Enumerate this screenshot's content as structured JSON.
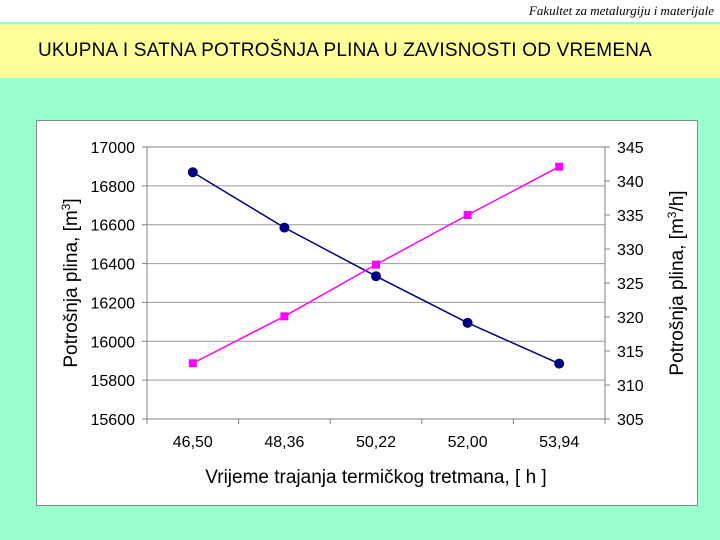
{
  "header": {
    "faculty": "Fakultet za metalurgiju i materijale"
  },
  "slide": {
    "title": "UKUPNA I SATNA POTROŠNJA PLINA U ZAVISNOSTI OD VREMENA"
  },
  "chart_data": {
    "type": "line",
    "title": "",
    "xlabel": "Vrijeme trajanja termičkog tretmana, [ h ]",
    "categories": [
      "46,50",
      "48,36",
      "50,22",
      "52,00",
      "53,94"
    ],
    "y_left": {
      "label_main": "Potrošnja plina, [m",
      "label_sup": "3",
      "label_end": "]",
      "ylim": [
        15600,
        17000
      ],
      "ticks": [
        15600,
        15800,
        16000,
        16200,
        16400,
        16600,
        16800,
        17000
      ]
    },
    "y_right": {
      "label_main": "Potrošnja plina, [m",
      "label_sup": "3",
      "label_end": "/h]",
      "ylim": [
        305,
        345
      ],
      "ticks": [
        305,
        310,
        315,
        320,
        325,
        330,
        335,
        340,
        345
      ]
    },
    "series": [
      {
        "axis": "left",
        "marker": "circle",
        "color": "#000080",
        "values": [
          16870,
          16585,
          16335,
          16095,
          15885
        ]
      },
      {
        "axis": "right",
        "marker": "square",
        "color": "#ff00ff",
        "values": [
          313.2,
          320.1,
          327.7,
          335.0,
          342.1
        ]
      }
    ],
    "grid": true,
    "legend": "none"
  }
}
